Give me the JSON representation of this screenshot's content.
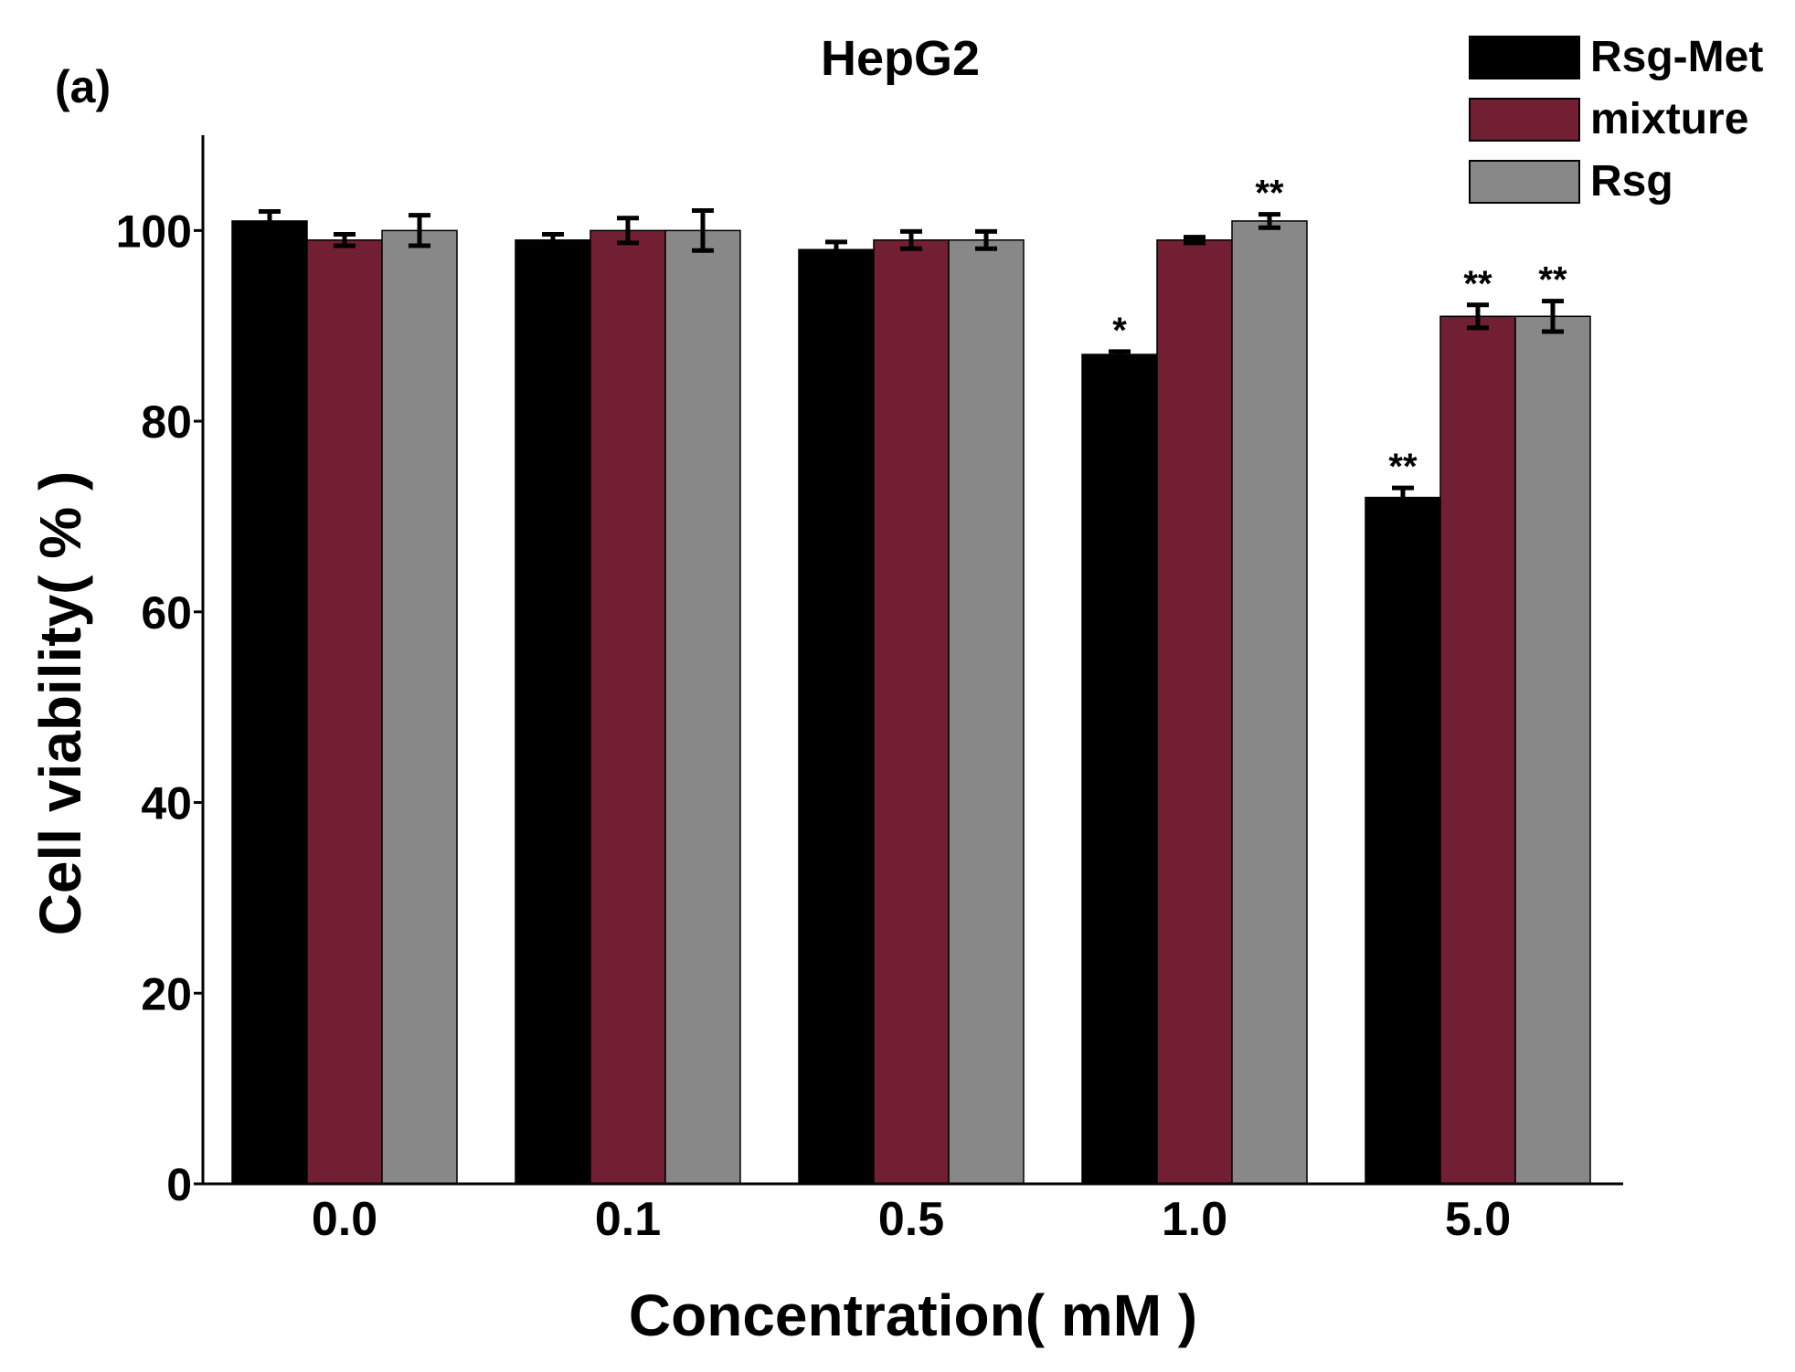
{
  "panel_label": "(a)",
  "chart_data": {
    "type": "bar",
    "title": "HepG2",
    "xlabel": "Concentration( mM )",
    "ylabel": "Cell viability( % )",
    "categories": [
      "0.0",
      "0.1",
      "0.5",
      "1.0",
      "5.0"
    ],
    "ylim": [
      0,
      110
    ],
    "yticks": [
      "0",
      "20",
      "40",
      "60",
      "80",
      "100"
    ],
    "grid": false,
    "legend_position": "top-right",
    "series": [
      {
        "name": "Rsg-Met",
        "color": "#000000",
        "values": [
          101,
          99,
          98,
          87,
          72
        ],
        "errors": [
          1.0,
          0.6,
          0.8,
          0.3,
          1.0
        ],
        "annotations": [
          "",
          "",
          "",
          "*",
          "**"
        ]
      },
      {
        "name": "mixture",
        "color": "#731f33",
        "values": [
          99,
          100,
          99,
          99,
          91
        ],
        "errors": [
          0.6,
          1.3,
          0.9,
          0.3,
          1.2
        ],
        "annotations": [
          "",
          "",
          "",
          "",
          "**"
        ]
      },
      {
        "name": "Rsg",
        "color": "#888888",
        "values": [
          100,
          100,
          99,
          101,
          91
        ],
        "errors": [
          1.6,
          2.1,
          0.9,
          0.7,
          1.6
        ],
        "annotations": [
          "",
          "",
          "",
          "**",
          "**"
        ]
      }
    ]
  }
}
